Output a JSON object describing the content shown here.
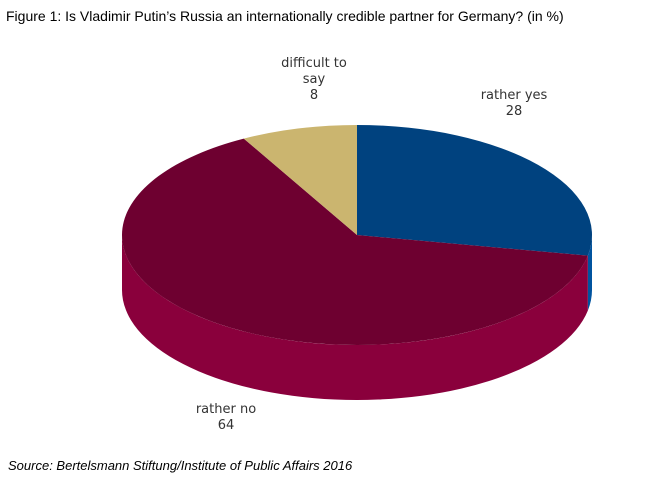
{
  "chart_data": {
    "type": "pie",
    "title": "Figure 1: Is Vladimir Putin’s Russia an internationally credible partner for Germany? (in %)",
    "categories": [
      "rather yes",
      "rather no",
      "difficult to say"
    ],
    "values": [
      28,
      64,
      8
    ],
    "colors": [
      "#00427f",
      "#6e0030",
      "#cbb56f"
    ],
    "source": "Source: Bertelsmann Stiftung/Institute of Public Affairs 2016"
  }
}
